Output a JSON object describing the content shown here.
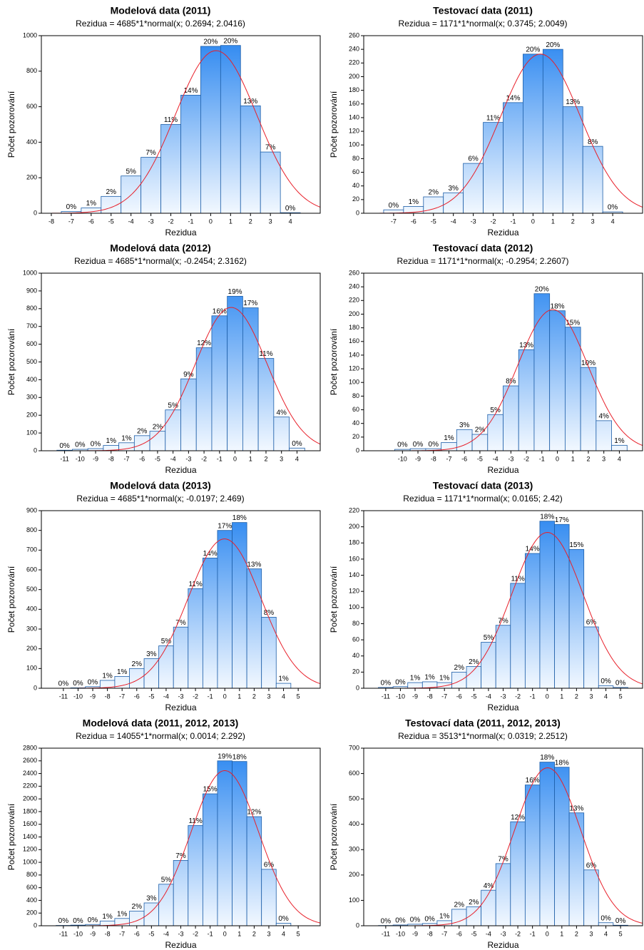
{
  "chart_data": [
    {
      "type": "histogram",
      "title": "Modelová data (2011)",
      "subtitle": "Rezidua = 4685*1*normal(x; 0.2694; 2.0416)",
      "x_label": "Rezidua",
      "y_label": "Počet pozorování",
      "color": "#2a86f0",
      "bins": [
        -7.5,
        -6.5,
        -5.5,
        -4.5,
        -3.5,
        -2.5,
        -1.5,
        -0.5,
        0.5,
        1.5,
        2.5,
        3.5,
        4.5
      ],
      "values": [
        10,
        30,
        95,
        210,
        315,
        500,
        665,
        940,
        945,
        605,
        345,
        3
      ],
      "percent_labels": [
        "0%",
        "1%",
        "2%",
        "5%",
        "7%",
        "11%",
        "14%",
        "20%",
        "20%",
        "13%",
        "7%",
        "0%"
      ],
      "fit": {
        "n": 4685,
        "mean": 0.2694,
        "sd": 2.0416,
        "color": "#e8202a"
      },
      "xlim": [
        -8.5,
        5.5
      ],
      "xticks": [
        -8,
        -7,
        -6,
        -5,
        -4,
        -3,
        -2,
        -1,
        0,
        1,
        2,
        3,
        4
      ],
      "ylim": [
        0,
        1000
      ],
      "yticks": [
        0,
        200,
        400,
        600,
        800,
        1000
      ]
    },
    {
      "type": "histogram",
      "title": "Testovací data (2011)",
      "subtitle": "Rezidua = 1171*1*normal(x; 0.3745; 2.0049)",
      "x_label": "Rezidua",
      "y_label": "Počet pozorování",
      "color": "#2a86f0",
      "bins": [
        -7.5,
        -6.5,
        -5.5,
        -4.5,
        -3.5,
        -2.5,
        -1.5,
        -0.5,
        0.5,
        1.5,
        2.5,
        3.5,
        4.5
      ],
      "values": [
        5,
        10,
        24,
        30,
        73,
        133,
        162,
        233,
        240,
        156,
        98,
        2
      ],
      "percent_labels": [
        "0%",
        "1%",
        "2%",
        "3%",
        "6%",
        "11%",
        "14%",
        "20%",
        "20%",
        "13%",
        "8%",
        "0%"
      ],
      "fit": {
        "n": 1171,
        "mean": 0.3745,
        "sd": 2.0049,
        "color": "#e8202a"
      },
      "xlim": [
        -8.5,
        5.5
      ],
      "xticks": [
        -7,
        -6,
        -5,
        -4,
        -3,
        -2,
        -1,
        0,
        1,
        2,
        3,
        4
      ],
      "ylim": [
        0,
        260
      ],
      "yticks": [
        0,
        20,
        40,
        60,
        80,
        100,
        120,
        140,
        160,
        180,
        200,
        220,
        240,
        260
      ]
    },
    {
      "type": "histogram",
      "title": "Modelová data (2012)",
      "subtitle": "Rezidua = 4685*1*normal(x; -0.2454; 2.3162)",
      "x_label": "Rezidua",
      "y_label": "Počet pozorování",
      "color": "#2a86f0",
      "bins": [
        -11.5,
        -10.5,
        -9.5,
        -8.5,
        -7.5,
        -6.5,
        -5.5,
        -4.5,
        -3.5,
        -2.5,
        -1.5,
        -0.5,
        0.5,
        1.5,
        2.5,
        3.5,
        4.5
      ],
      "values": [
        3,
        8,
        12,
        30,
        45,
        85,
        110,
        230,
        405,
        580,
        760,
        870,
        805,
        520,
        190,
        15
      ],
      "percent_labels": [
        "0%",
        "0%",
        "0%",
        "1%",
        "1%",
        "2%",
        "2%",
        "5%",
        "9%",
        "12%",
        "16%",
        "19%",
        "17%",
        "11%",
        "4%",
        "0%"
      ],
      "fit": {
        "n": 4685,
        "mean": -0.2454,
        "sd": 2.3162,
        "color": "#e8202a"
      },
      "xlim": [
        -12.5,
        5.5
      ],
      "xticks": [
        -11,
        -10,
        -9,
        -8,
        -7,
        -6,
        -5,
        -4,
        -3,
        -2,
        -1,
        0,
        1,
        2,
        3,
        4
      ],
      "ylim": [
        0,
        1000
      ],
      "yticks": [
        0,
        100,
        200,
        300,
        400,
        500,
        600,
        700,
        800,
        900,
        1000
      ]
    },
    {
      "type": "histogram",
      "title": "Testovací data (2012)",
      "subtitle": "Rezidua = 1171*1*normal(x; -0.2954; 2.2607)",
      "x_label": "Rezidua",
      "y_label": "Počet pozorování",
      "color": "#2a86f0",
      "bins": [
        -10.5,
        -9.5,
        -8.5,
        -7.5,
        -6.5,
        -5.5,
        -4.5,
        -3.5,
        -2.5,
        -1.5,
        -0.5,
        0.5,
        1.5,
        2.5,
        3.5,
        4.5
      ],
      "values": [
        2,
        3,
        3,
        12,
        31,
        24,
        53,
        95,
        148,
        230,
        205,
        181,
        122,
        44,
        8
      ],
      "percent_labels": [
        "0%",
        "0%",
        "0%",
        "1%",
        "3%",
        "2%",
        "5%",
        "8%",
        "13%",
        "20%",
        "18%",
        "15%",
        "10%",
        "4%",
        "1%"
      ],
      "fit": {
        "n": 1171,
        "mean": -0.2954,
        "sd": 2.2607,
        "color": "#e8202a"
      },
      "xlim": [
        -12.5,
        5.5
      ],
      "xticks": [
        -10,
        -9,
        -8,
        -7,
        -6,
        -5,
        -4,
        -3,
        -2,
        -1,
        0,
        1,
        2,
        3,
        4
      ],
      "ylim": [
        0,
        260
      ],
      "yticks": [
        0,
        20,
        40,
        60,
        80,
        100,
        120,
        140,
        160,
        180,
        200,
        220,
        240,
        260
      ]
    },
    {
      "type": "histogram",
      "title": "Modelová data (2013)",
      "subtitle": "Rezidua = 4685*1*normal(x; -0.0197; 2.469)",
      "x_label": "Rezidua",
      "y_label": "Počet pozorování",
      "color": "#2a86f0",
      "bins": [
        -11.5,
        -10.5,
        -9.5,
        -8.5,
        -7.5,
        -6.5,
        -5.5,
        -4.5,
        -3.5,
        -2.5,
        -1.5,
        -0.5,
        0.5,
        1.5,
        2.5,
        3.5,
        4.5
      ],
      "values": [
        0,
        2,
        8,
        40,
        60,
        100,
        150,
        215,
        310,
        505,
        660,
        800,
        840,
        605,
        360,
        25
      ],
      "percent_labels": [
        "0%",
        "0%",
        "0%",
        "1%",
        "1%",
        "2%",
        "3%",
        "5%",
        "7%",
        "11%",
        "14%",
        "17%",
        "18%",
        "13%",
        "8%",
        "1%"
      ],
      "fit": {
        "n": 4685,
        "mean": -0.0197,
        "sd": 2.469,
        "color": "#e8202a"
      },
      "xlim": [
        -12.5,
        6.5
      ],
      "xticks": [
        -11,
        -10,
        -9,
        -8,
        -7,
        -6,
        -5,
        -4,
        -3,
        -2,
        -1,
        0,
        1,
        2,
        3,
        4,
        5
      ],
      "ylim": [
        0,
        900
      ],
      "yticks": [
        0,
        100,
        200,
        300,
        400,
        500,
        600,
        700,
        800,
        900
      ]
    },
    {
      "type": "histogram",
      "title": "Testovací data (2013)",
      "subtitle": "Rezidua = 1171*1*normal(x; 0.0165; 2.42)",
      "x_label": "Rezidua",
      "y_label": "Počet pozorování",
      "color": "#2a86f0",
      "bins": [
        -11.5,
        -10.5,
        -9.5,
        -8.5,
        -7.5,
        -6.5,
        -5.5,
        -4.5,
        -3.5,
        -2.5,
        -1.5,
        -0.5,
        0.5,
        1.5,
        2.5,
        3.5,
        4.5,
        5.5
      ],
      "values": [
        1,
        2,
        7,
        8,
        7,
        20,
        27,
        57,
        78,
        130,
        167,
        207,
        203,
        172,
        76,
        3,
        1
      ],
      "percent_labels": [
        "0%",
        "0%",
        "1%",
        "1%",
        "1%",
        "2%",
        "2%",
        "5%",
        "7%",
        "11%",
        "14%",
        "18%",
        "17%",
        "15%",
        "6%",
        "0%",
        "0%"
      ],
      "fit": {
        "n": 1171,
        "mean": 0.0165,
        "sd": 2.42,
        "color": "#e8202a"
      },
      "xlim": [
        -12.5,
        6.5
      ],
      "xticks": [
        -11,
        -10,
        -9,
        -8,
        -7,
        -6,
        -5,
        -4,
        -3,
        -2,
        -1,
        0,
        1,
        2,
        3,
        4,
        5
      ],
      "ylim": [
        0,
        220
      ],
      "yticks": [
        0,
        20,
        40,
        60,
        80,
        100,
        120,
        140,
        160,
        180,
        200,
        220
      ]
    },
    {
      "type": "histogram",
      "title": "Modelová data (2011, 2012, 2013)",
      "subtitle": "Rezidua = 14055*1*normal(x; 0.0014; 2.292)",
      "x_label": "Rezidua",
      "y_label": "Počet pozorování",
      "color": "#2a86f0",
      "bins": [
        -11.5,
        -10.5,
        -9.5,
        -8.5,
        -7.5,
        -6.5,
        -5.5,
        -4.5,
        -3.5,
        -2.5,
        -1.5,
        -0.5,
        0.5,
        1.5,
        2.5,
        3.5,
        4.5
      ],
      "values": [
        5,
        10,
        20,
        75,
        115,
        230,
        360,
        655,
        1030,
        1580,
        2080,
        2600,
        2590,
        1720,
        890,
        40
      ],
      "percent_labels": [
        "0%",
        "0%",
        "0%",
        "1%",
        "1%",
        "2%",
        "3%",
        "5%",
        "7%",
        "11%",
        "15%",
        "19%",
        "18%",
        "12%",
        "6%",
        "0%"
      ],
      "fit": {
        "n": 14055,
        "mean": 0.0014,
        "sd": 2.292,
        "color": "#e8202a"
      },
      "xlim": [
        -12.5,
        6.5
      ],
      "xticks": [
        -11,
        -10,
        -9,
        -8,
        -7,
        -6,
        -5,
        -4,
        -3,
        -2,
        -1,
        0,
        1,
        2,
        3,
        4,
        5
      ],
      "ylim": [
        0,
        2800
      ],
      "yticks": [
        0,
        200,
        400,
        600,
        800,
        1000,
        1200,
        1400,
        1600,
        1800,
        2000,
        2200,
        2400,
        2600,
        2800
      ]
    },
    {
      "type": "histogram",
      "title": "Testovací data (2011, 2012, 2013)",
      "subtitle": "Rezidua = 3513*1*normal(x; 0.0319; 2.2512)",
      "x_label": "Rezidua",
      "y_label": "Počet pozorování",
      "color": "#2a86f0",
      "bins": [
        -11.5,
        -10.5,
        -9.5,
        -8.5,
        -7.5,
        -6.5,
        -5.5,
        -4.5,
        -3.5,
        -2.5,
        -1.5,
        -0.5,
        0.5,
        1.5,
        2.5,
        3.5,
        4.5,
        5.5
      ],
      "values": [
        1,
        3,
        6,
        9,
        20,
        65,
        75,
        140,
        245,
        410,
        555,
        645,
        625,
        445,
        220,
        12,
        2
      ],
      "percent_labels": [
        "0%",
        "0%",
        "0%",
        "0%",
        "1%",
        "2%",
        "2%",
        "4%",
        "7%",
        "12%",
        "16%",
        "18%",
        "18%",
        "13%",
        "6%",
        "0%",
        "0%"
      ],
      "fit": {
        "n": 3513,
        "mean": 0.0319,
        "sd": 2.2512,
        "color": "#e8202a"
      },
      "xlim": [
        -12.5,
        6.5
      ],
      "xticks": [
        -11,
        -10,
        -9,
        -8,
        -7,
        -6,
        -5,
        -4,
        -3,
        -2,
        -1,
        0,
        1,
        2,
        3,
        4,
        5
      ],
      "ylim": [
        0,
        700
      ],
      "yticks": [
        0,
        100,
        200,
        300,
        400,
        500,
        600,
        700
      ]
    }
  ]
}
